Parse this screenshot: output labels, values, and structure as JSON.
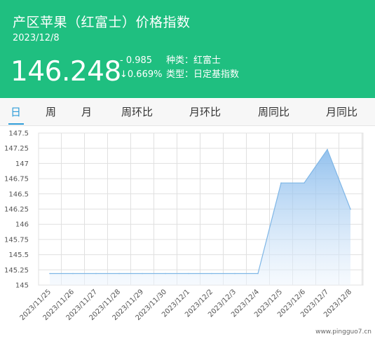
{
  "header": {
    "title": "产区苹果（红富士）价格指数",
    "date": "2023/12/8",
    "price": "146.248",
    "change": "- 0.985",
    "change_pct": "↓0.669%",
    "kind_label": "种类：",
    "kind_value": "红富士",
    "type_label": "类型：",
    "type_value": "日定基指数"
  },
  "tabs": [
    {
      "label": "日",
      "active": true
    },
    {
      "label": "周",
      "active": false
    },
    {
      "label": "月",
      "active": false
    },
    {
      "label": "周环比",
      "active": false
    },
    {
      "label": "月环比",
      "active": false
    },
    {
      "label": "周同比",
      "active": false
    },
    {
      "label": "月同比",
      "active": false
    }
  ],
  "chart_data": {
    "type": "area",
    "title": "",
    "xlabel": "",
    "ylabel": "",
    "categories": [
      "2023/11/25",
      "2023/11/26",
      "2023/11/27",
      "2023/11/28",
      "2023/11/29",
      "2023/11/30",
      "2023/12/1",
      "2023/12/2",
      "2023/12/3",
      "2023/12/4",
      "2023/12/5",
      "2023/12/6",
      "2023/12/7",
      "2023/12/8"
    ],
    "values": [
      145.19,
      145.19,
      145.19,
      145.19,
      145.19,
      145.19,
      145.19,
      145.19,
      145.19,
      145.19,
      146.68,
      146.68,
      147.23,
      146.248
    ],
    "ylim": [
      145,
      147.5
    ],
    "yticks": [
      "147.5",
      "147.25",
      "147",
      "146.75",
      "146.5",
      "146.25",
      "146",
      "145.75",
      "145.5",
      "145.25",
      "145"
    ],
    "grid": true,
    "colors": {
      "line": "#7fb6e6",
      "fill_top": "#7ab3ea",
      "fill_bottom": "#eef5fd",
      "grid": "#e0e0e0"
    }
  },
  "watermark": "www.pingguo7.cn"
}
